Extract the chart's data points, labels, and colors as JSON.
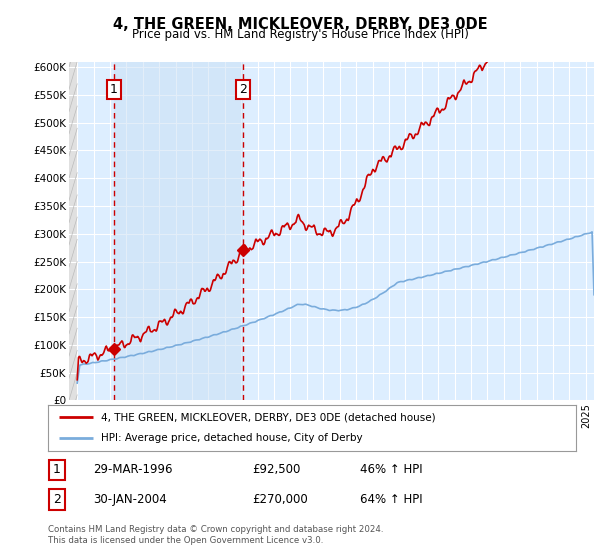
{
  "title": "4, THE GREEN, MICKLEOVER, DERBY, DE3 0DE",
  "subtitle": "Price paid vs. HM Land Registry's House Price Index (HPI)",
  "ylabel_ticks": [
    "£0",
    "£50K",
    "£100K",
    "£150K",
    "£200K",
    "£250K",
    "£300K",
    "£350K",
    "£400K",
    "£450K",
    "£500K",
    "£550K",
    "£600K"
  ],
  "ytick_values": [
    0,
    50000,
    100000,
    150000,
    200000,
    250000,
    300000,
    350000,
    400000,
    450000,
    500000,
    550000,
    600000
  ],
  "xlim": [
    1993.5,
    2025.5
  ],
  "ylim": [
    0,
    610000
  ],
  "legend_line1": "4, THE GREEN, MICKLEOVER, DERBY, DE3 0DE (detached house)",
  "legend_line2": "HPI: Average price, detached house, City of Derby",
  "sale1_label": "1",
  "sale1_date": "29-MAR-1996",
  "sale1_price": "£92,500",
  "sale1_hpi": "46% ↑ HPI",
  "sale1_x": 1996.23,
  "sale1_y": 92500,
  "sale2_label": "2",
  "sale2_date": "30-JAN-2004",
  "sale2_price": "£270,000",
  "sale2_hpi": "64% ↑ HPI",
  "sale2_x": 2004.08,
  "sale2_y": 270000,
  "footer": "Contains HM Land Registry data © Crown copyright and database right 2024.\nThis data is licensed under the Open Government Licence v3.0.",
  "red_color": "#cc0000",
  "blue_color": "#7aacdc",
  "bg_plot": "#ddeeff",
  "bg_highlight": "#cce0f5"
}
